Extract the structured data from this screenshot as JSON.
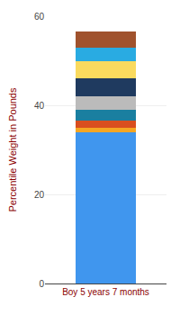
{
  "chart_data": {
    "type": "bar",
    "stacked": true,
    "categories": [
      "Boy 5 years 7 months"
    ],
    "series": [
      {
        "color": "#4096EE",
        "values": [
          34.0
        ]
      },
      {
        "color": "#F5A623",
        "values": [
          1.0
        ]
      },
      {
        "color": "#D94E1F",
        "values": [
          1.5
        ]
      },
      {
        "color": "#1A7FA0",
        "values": [
          2.5
        ]
      },
      {
        "color": "#BBBBBB",
        "values": [
          3.0
        ]
      },
      {
        "color": "#1F3A5F",
        "values": [
          4.0
        ]
      },
      {
        "color": "#FADA5E",
        "values": [
          4.0
        ]
      },
      {
        "color": "#29ABE2",
        "values": [
          3.0
        ]
      },
      {
        "color": "#A0522D",
        "values": [
          3.5
        ]
      }
    ],
    "ylabel": "Percentile Weight in Pounds",
    "ylim": [
      0,
      60
    ],
    "yticks": [
      0,
      20,
      40,
      60
    ],
    "grid": true
  }
}
